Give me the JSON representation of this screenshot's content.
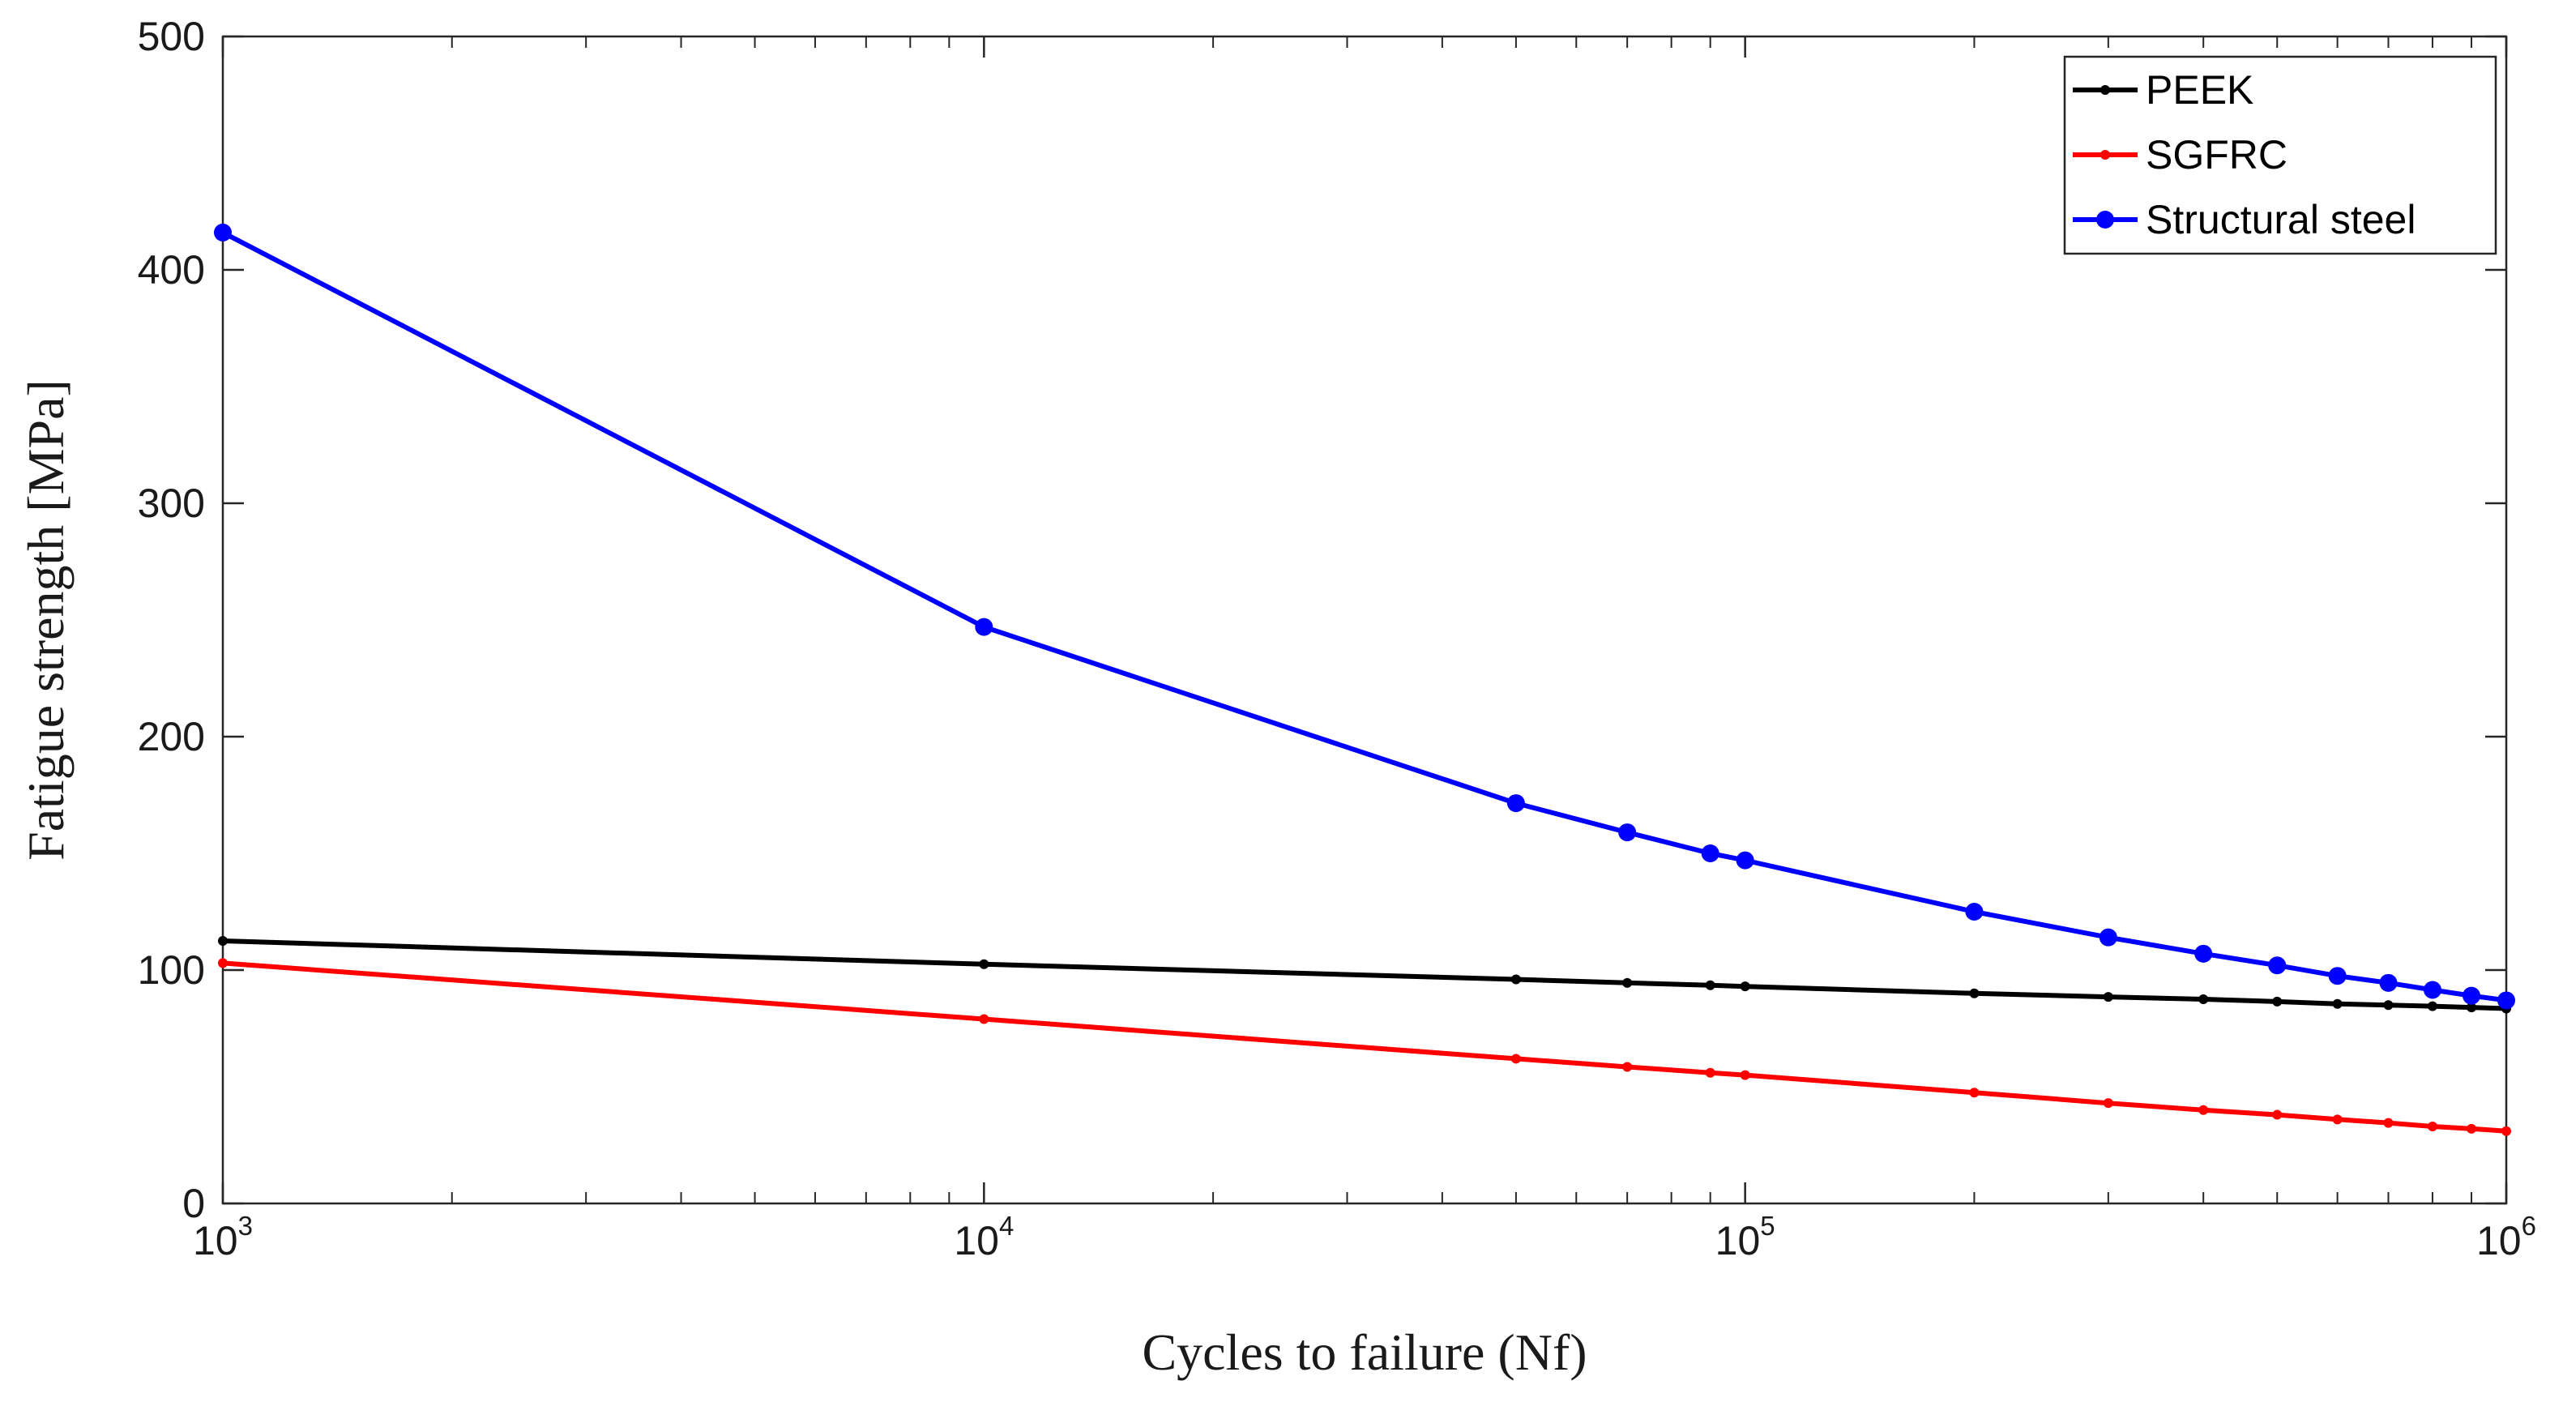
{
  "chart_data": {
    "type": "line",
    "title": "",
    "xlabel": "Cycles to failure (Nf)",
    "ylabel": "Fatigue strength [MPa]",
    "xscale": "log",
    "xlim": [
      1000,
      1000000
    ],
    "ylim": [
      0,
      500
    ],
    "legend_position": "top-right",
    "grid": false,
    "x_tick_labels": [
      {
        "base": "10",
        "exp": "3",
        "value": 1000
      },
      {
        "base": "10",
        "exp": "4",
        "value": 10000
      },
      {
        "base": "10",
        "exp": "5",
        "value": 100000
      },
      {
        "base": "10",
        "exp": "6",
        "value": 1000000
      }
    ],
    "y_ticks": [
      0,
      100,
      200,
      300,
      400,
      500
    ],
    "y_tick_labels": [
      "0",
      "100",
      "200",
      "300",
      "400",
      "500"
    ],
    "series": [
      {
        "name": "PEEK",
        "color": "#000000",
        "marker": "small-dot",
        "x": [
          1000,
          10000,
          50000,
          70000,
          90000,
          100000,
          200000,
          300000,
          400000,
          500000,
          600000,
          700000,
          800000,
          900000,
          1000000
        ],
        "values": [
          112.5,
          102.5,
          96.0,
          94.5,
          93.5,
          93.0,
          90.0,
          88.5,
          87.5,
          86.5,
          85.5,
          85.0,
          84.5,
          84.0,
          83.5
        ]
      },
      {
        "name": "SGFRC",
        "color": "#ff0000",
        "marker": "small-dot",
        "x": [
          1000,
          10000,
          50000,
          70000,
          90000,
          100000,
          200000,
          300000,
          400000,
          500000,
          600000,
          700000,
          800000,
          900000,
          1000000
        ],
        "values": [
          103.0,
          79.0,
          62.0,
          58.5,
          56.0,
          55.0,
          47.5,
          43.0,
          40.0,
          38.0,
          36.0,
          34.5,
          33.0,
          32.0,
          31.0
        ]
      },
      {
        "name": "Structural steel",
        "color": "#0000ff",
        "marker": "dot",
        "x": [
          1000,
          10000,
          50000,
          70000,
          90000,
          100000,
          200000,
          300000,
          400000,
          500000,
          600000,
          700000,
          800000,
          900000,
          1000000
        ],
        "values": [
          416.0,
          247.0,
          171.5,
          159.0,
          150.0,
          147.0,
          125.0,
          114.0,
          107.0,
          102.0,
          97.5,
          94.5,
          91.5,
          89.0,
          87.0
        ]
      }
    ]
  }
}
